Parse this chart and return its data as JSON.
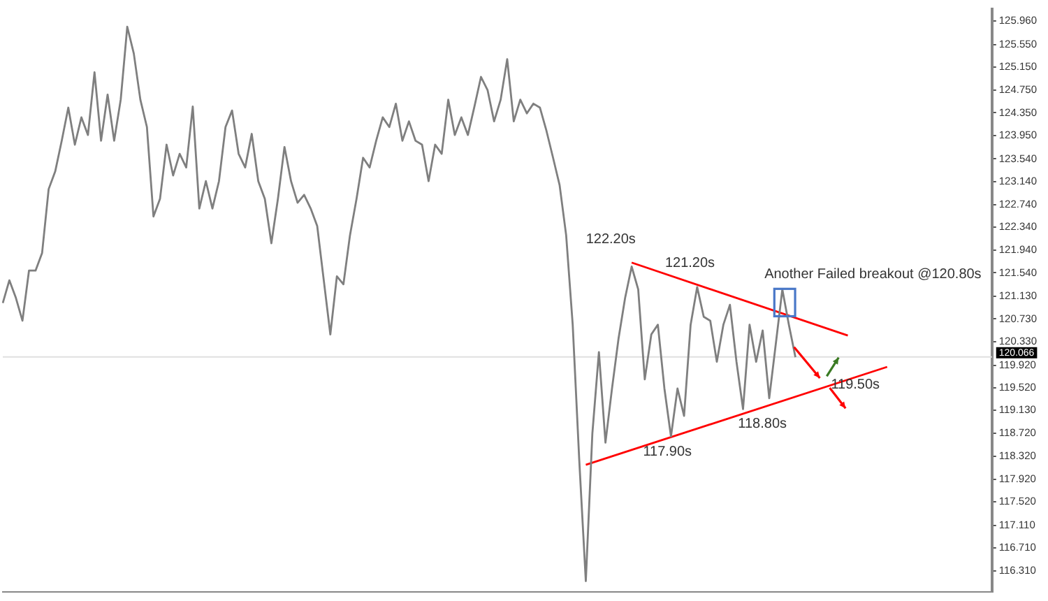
{
  "chart_data": {
    "type": "line",
    "categories": [
      null,
      null,
      null,
      null,
      null,
      null,
      null,
      null,
      null,
      null,
      null,
      null,
      null,
      null,
      null,
      null,
      null,
      null,
      null,
      null,
      null,
      null,
      null,
      null,
      null,
      null,
      null,
      null,
      null,
      null,
      null,
      null,
      null,
      null,
      null,
      null,
      null,
      null,
      null,
      null,
      null,
      null,
      null,
      null,
      null,
      null,
      null,
      null,
      null,
      null,
      null,
      null,
      null,
      null,
      null,
      null,
      null,
      null,
      null,
      null,
      null,
      null,
      null,
      null,
      null,
      null,
      null,
      null,
      null,
      null,
      null,
      null,
      null,
      null,
      null,
      null,
      null,
      null,
      null,
      null,
      null,
      null,
      null,
      null,
      null,
      null,
      null,
      null,
      null,
      null,
      null,
      null,
      null,
      null,
      null,
      null,
      null,
      null,
      null,
      null,
      null,
      null,
      null,
      null,
      null,
      null,
      null,
      null,
      null,
      null,
      null,
      null,
      null,
      null,
      null,
      null,
      null,
      null,
      null,
      null,
      null,
      null,
      null,
      null,
      null,
      null,
      null,
      null,
      null,
      null,
      null,
      null,
      null,
      null,
      null,
      null,
      null,
      null,
      null,
      null,
      null,
      null,
      null,
      null,
      null,
      null,
      null,
      null,
      null,
      null,
      null,
      null
    ],
    "series": [
      {
        "color": "#7f7f7f",
        "values": [
          121.01,
          121.41,
          121.1,
          120.7,
          121.58,
          121.58,
          121.89,
          123.01,
          123.32,
          123.86,
          124.44,
          123.79,
          124.27,
          123.96,
          125.06,
          123.86,
          124.67,
          123.86,
          124.58,
          125.86,
          125.39,
          124.58,
          124.1,
          122.53,
          122.84,
          123.79,
          123.25,
          123.63,
          123.39,
          124.46,
          122.67,
          123.15,
          122.67,
          123.15,
          124.1,
          124.39,
          123.63,
          123.39,
          123.98,
          123.15,
          122.84,
          122.06,
          122.84,
          123.75,
          123.15,
          122.77,
          122.91,
          122.67,
          122.36,
          121.41,
          120.46,
          121.48,
          121.34,
          122.2,
          122.84,
          123.56,
          123.39,
          123.86,
          124.27,
          124.1,
          124.51,
          123.86,
          124.2,
          123.86,
          123.79,
          123.15,
          123.79,
          123.63,
          124.58,
          123.96,
          124.27,
          123.96,
          124.46,
          124.98,
          124.75,
          124.2,
          124.58,
          125.29,
          124.2,
          124.58,
          124.34,
          124.51,
          124.44,
          124.03,
          123.56,
          123.08,
          122.2,
          120.63,
          118.25,
          116.13,
          118.72,
          120.15,
          118.56,
          119.51,
          120.39,
          121.1,
          121.65,
          121.25,
          119.67,
          120.46,
          120.63,
          119.51,
          118.67,
          119.51,
          119.03,
          120.63,
          121.29,
          120.77,
          120.7,
          119.98,
          120.63,
          120.98,
          119.98,
          119.15,
          120.63,
          119.98,
          120.53,
          119.34,
          120.29,
          121.25,
          120.63,
          120.06,
          null,
          null,
          null,
          null,
          null,
          null,
          null,
          null,
          null,
          null,
          null,
          null,
          null,
          null,
          null,
          null,
          null,
          null,
          null,
          null,
          null,
          null,
          null,
          null,
          null,
          null,
          null,
          null,
          null,
          null
        ]
      },
      {
        "color": "#ff0000",
        "values": [
          null,
          null,
          null,
          null,
          null,
          null,
          null,
          null,
          null,
          null,
          null,
          null,
          null,
          null,
          null,
          null,
          null,
          null,
          null,
          null,
          null,
          null,
          null,
          null,
          null,
          null,
          null,
          null,
          null,
          null,
          null,
          null,
          null,
          null,
          null,
          null,
          null,
          null,
          null,
          null,
          null,
          null,
          null,
          null,
          null,
          null,
          null,
          null,
          null,
          null,
          null,
          null,
          null,
          null,
          null,
          null,
          null,
          null,
          null,
          null,
          null,
          null,
          null,
          null,
          null,
          null,
          null,
          null,
          null,
          null,
          null,
          null,
          null,
          null,
          null,
          null,
          null,
          null,
          null,
          null,
          null,
          null,
          null,
          null,
          null,
          null,
          null,
          null,
          null,
          null,
          null,
          null,
          null,
          null,
          null,
          null,
          121.72,
          null,
          null,
          null,
          null,
          null,
          null,
          null,
          null,
          null,
          null,
          null,
          null,
          null,
          null,
          null,
          null,
          null,
          null,
          null,
          null,
          null,
          null,
          null,
          null,
          null,
          null,
          null,
          null,
          null,
          null,
          null,
          null,
          120.44,
          null,
          null,
          null,
          null,
          null,
          null,
          null,
          null,
          null,
          null,
          null,
          null,
          null,
          null,
          null,
          null,
          null,
          null,
          null,
          null,
          null,
          null
        ]
      },
      {
        "color": "#ff0000",
        "values": [
          null,
          null,
          null,
          null,
          null,
          null,
          null,
          null,
          null,
          null,
          null,
          null,
          null,
          null,
          null,
          null,
          null,
          null,
          null,
          null,
          null,
          null,
          null,
          null,
          null,
          null,
          null,
          null,
          null,
          null,
          null,
          null,
          null,
          null,
          null,
          null,
          null,
          null,
          null,
          null,
          null,
          null,
          null,
          null,
          null,
          null,
          null,
          null,
          null,
          null,
          null,
          null,
          null,
          null,
          null,
          null,
          null,
          null,
          null,
          null,
          null,
          null,
          null,
          null,
          null,
          null,
          null,
          null,
          null,
          null,
          null,
          null,
          null,
          null,
          null,
          null,
          null,
          null,
          null,
          null,
          null,
          null,
          null,
          null,
          null,
          null,
          null,
          null,
          null,
          118.17,
          null,
          null,
          null,
          null,
          null,
          null,
          null,
          null,
          null,
          null,
          null,
          null,
          null,
          null,
          null,
          null,
          null,
          null,
          null,
          null,
          null,
          null,
          null,
          null,
          null,
          null,
          null,
          null,
          null,
          null,
          null,
          null,
          null,
          null,
          null,
          null,
          null,
          null,
          null,
          null,
          null,
          null,
          null,
          null,
          null,
          119.89,
          null,
          null,
          null,
          null,
          null,
          null,
          null,
          null,
          null,
          null,
          null,
          null,
          null,
          null,
          null,
          null
        ]
      }
    ],
    "ylim": [
      115.94,
      126.17
    ],
    "yticks": [
      {
        "value": 125.96,
        "label": "125.960"
      },
      {
        "value": 125.55,
        "label": "125.550"
      },
      {
        "value": 125.15,
        "label": "125.150"
      },
      {
        "value": 124.75,
        "label": "124.750"
      },
      {
        "value": 124.35,
        "label": "124.350"
      },
      {
        "value": 123.95,
        "label": "123.950"
      },
      {
        "value": 123.54,
        "label": "123.540"
      },
      {
        "value": 123.14,
        "label": "123.140"
      },
      {
        "value": 122.74,
        "label": "122.740"
      },
      {
        "value": 122.34,
        "label": "122.340"
      },
      {
        "value": 121.94,
        "label": "121.940"
      },
      {
        "value": 121.54,
        "label": "121.540"
      },
      {
        "value": 121.13,
        "label": "121.130"
      },
      {
        "value": 120.73,
        "label": "120.730"
      },
      {
        "value": 120.33,
        "label": "120.330"
      },
      {
        "value": 119.92,
        "label": "119.920"
      },
      {
        "value": 119.52,
        "label": "119.520"
      },
      {
        "value": 119.13,
        "label": "119.130"
      },
      {
        "value": 118.72,
        "label": "118.720"
      },
      {
        "value": 118.32,
        "label": "118.320"
      },
      {
        "value": 117.92,
        "label": "117.920"
      },
      {
        "value": 117.52,
        "label": "117.520"
      },
      {
        "value": 117.11,
        "label": "117.110"
      },
      {
        "value": 116.71,
        "label": "116.710"
      },
      {
        "value": 116.31,
        "label": "116.310"
      }
    ],
    "tick_labels": "y",
    "grid": false,
    "legend": false,
    "ref_lines": [
      {
        "axis": "y",
        "value": 120.066,
        "label": "120.066",
        "color": "#e0e0e0"
      }
    ],
    "annotations": [
      "122.20s",
      "121.20s",
      "Another Failed breakout @120.80s",
      "117.90s",
      "118.80s",
      "119.50s"
    ]
  }
}
